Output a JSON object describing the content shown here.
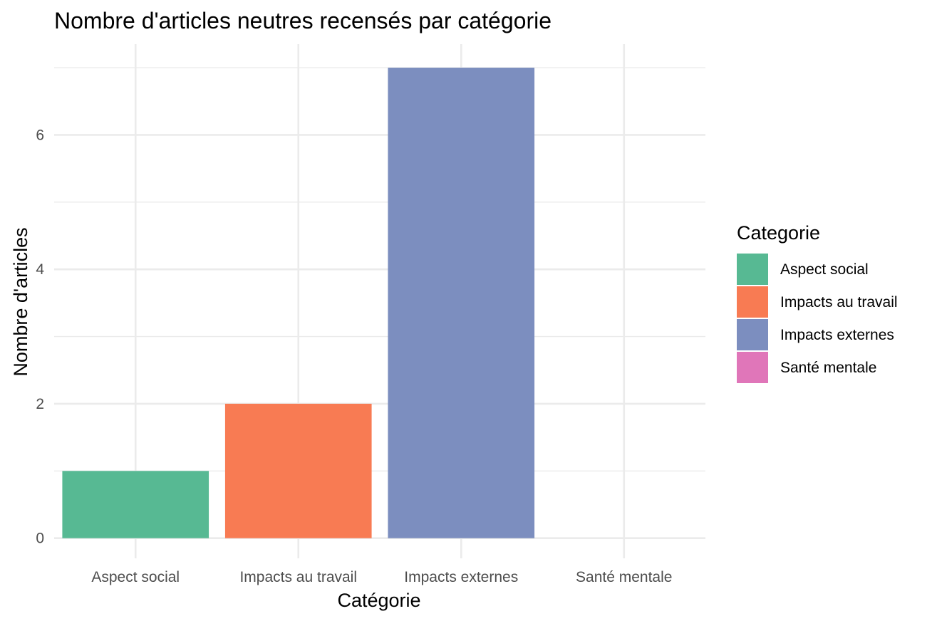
{
  "chart_data": {
    "type": "bar",
    "title": "Nombre d'articles neutres recensés par catégorie",
    "xlabel": "Catégorie",
    "ylabel": "Nombre d'articles",
    "categories": [
      "Aspect social",
      "Impacts au travail",
      "Impacts externes",
      "Santé mentale"
    ],
    "values": [
      1,
      2,
      7,
      0
    ],
    "colors": [
      "#57b993",
      "#f87b53",
      "#7c8ebf",
      "#e076b9"
    ],
    "ylim": [
      -0.3,
      7.35
    ],
    "yticks": [
      0,
      2,
      4,
      6
    ],
    "yticklabels": [
      "0",
      "2",
      "4",
      "6"
    ],
    "y_minor_ticks": [
      1,
      3,
      5,
      7
    ],
    "grid": true,
    "legend": {
      "title": "Categorie",
      "placement": "right",
      "entries": [
        "Aspect social",
        "Impacts au travail",
        "Impacts externes",
        "Santé mentale"
      ]
    }
  }
}
